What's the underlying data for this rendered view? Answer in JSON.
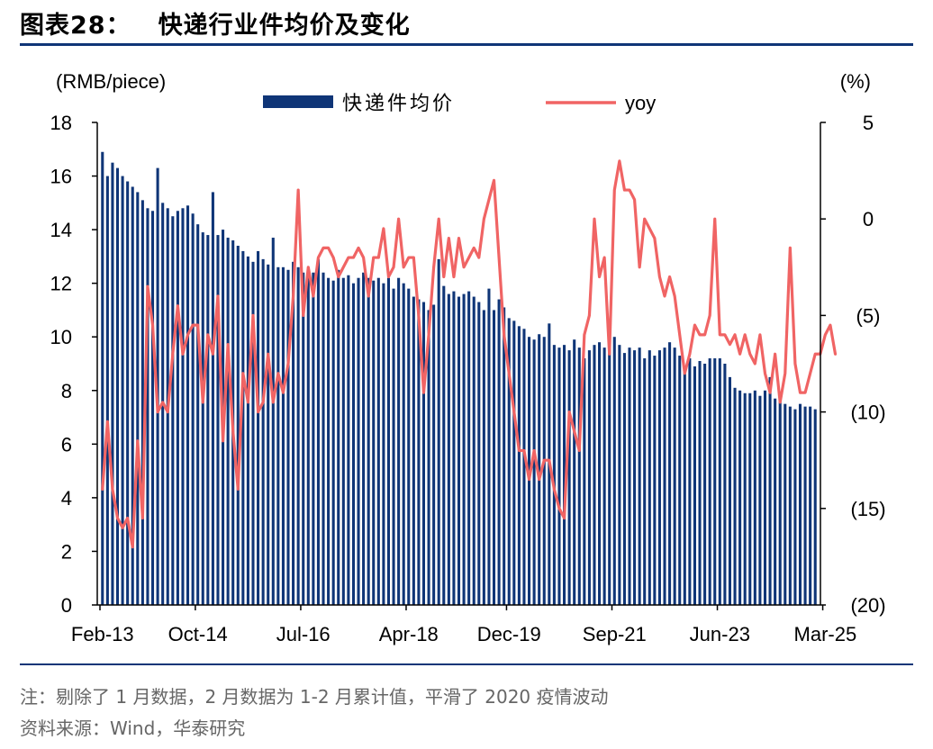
{
  "title": {
    "label": "图表28：",
    "text": "快递行业件均价及变化"
  },
  "notes": {
    "line1": "注：剔除了 1 月数据，2 月数据为 1-2 月累计值，平滑了 2020 疫情波动",
    "source_label": "资料来源：",
    "source_value": "Wind，华泰研究"
  },
  "colors": {
    "bar": "#0f3577",
    "line": "#f06464",
    "rule": "#0f3577",
    "note": "#666666"
  },
  "chart_data": {
    "type": "bar+line",
    "left_axis": {
      "label": "(RMB/piece)",
      "ylim": [
        0,
        18
      ],
      "ticks": [
        0,
        2,
        4,
        6,
        8,
        10,
        12,
        14,
        16,
        18
      ],
      "tick_labels": [
        "0",
        "2",
        "4",
        "6",
        "8",
        "10",
        "12",
        "14",
        "16",
        "18"
      ]
    },
    "right_axis": {
      "label": "(%)",
      "ylim": [
        -20,
        5
      ],
      "ticks": [
        5,
        0,
        -5,
        -10,
        -15,
        -20
      ],
      "tick_labels": [
        "5",
        "0",
        "(5)",
        "(10)",
        "(15)",
        "(20)"
      ]
    },
    "x_tick_labels": [
      "Feb-13",
      "Oct-14",
      "Jul-16",
      "Apr-18",
      "Dec-19",
      "Sep-21",
      "Jun-23",
      "Mar-25"
    ],
    "x_tick_indices": [
      0,
      19,
      40,
      61,
      81,
      102,
      123,
      144
    ],
    "legend": {
      "bar": "快递件均价",
      "line": "yoy",
      "position": "top"
    },
    "series": [
      {
        "name": "快递件均价",
        "type": "bar",
        "axis": "left",
        "values": [
          16.9,
          16.0,
          16.5,
          16.3,
          16.0,
          15.8,
          15.6,
          15.4,
          15.1,
          14.8,
          14.7,
          16.3,
          15.0,
          14.8,
          14.5,
          14.7,
          14.8,
          14.9,
          14.6,
          14.2,
          13.9,
          13.8,
          15.4,
          13.8,
          14.0,
          13.7,
          13.6,
          13.4,
          13.2,
          13.0,
          12.8,
          13.2,
          12.9,
          12.7,
          13.7,
          12.6,
          12.6,
          12.5,
          12.8,
          12.6,
          12.4,
          12.5,
          12.4,
          12.9,
          12.4,
          12.2,
          12.1,
          12.5,
          12.2,
          12.3,
          12.0,
          12.2,
          12.4,
          12.2,
          12.1,
          12.2,
          12.0,
          12.2,
          11.8,
          12.2,
          12.0,
          11.8,
          11.5,
          11.4,
          11.3,
          11.0,
          11.2,
          12.9,
          11.9,
          11.6,
          11.7,
          11.5,
          11.6,
          11.7,
          11.5,
          11.3,
          11.0,
          11.8,
          11.0,
          11.4,
          11.1,
          10.7,
          10.6,
          10.4,
          10.3,
          10.0,
          9.9,
          10.1,
          10.0,
          10.5,
          9.7,
          9.6,
          9.7,
          9.5,
          9.9,
          9.6,
          9.2,
          9.5,
          9.7,
          9.8,
          9.6,
          9.9,
          10.0,
          9.7,
          9.4,
          9.6,
          9.5,
          9.6,
          9.2,
          9.5,
          9.3,
          9.5,
          9.6,
          9.8,
          9.6,
          9.3,
          8.8,
          9.2,
          8.9,
          9.1,
          9.0,
          9.2,
          9.2,
          9.2,
          9.0,
          8.5,
          8.1,
          8.0,
          7.9,
          7.9,
          8.0,
          7.8,
          8.0,
          8.5,
          7.7,
          7.7,
          7.5,
          7.4,
          7.3,
          7.5,
          7.4,
          7.4,
          7.3
        ]
      },
      {
        "name": "yoy",
        "type": "line",
        "axis": "right",
        "values": [
          -14,
          -10.5,
          -14,
          -15.5,
          -16,
          -15.5,
          -17,
          -11.5,
          -15.5,
          -3.5,
          -5.5,
          -10,
          -9.5,
          -10,
          -7,
          -4.5,
          -7,
          -6,
          -5.5,
          -5.5,
          -9.5,
          -6,
          -7,
          -4,
          -11.5,
          -6.5,
          -11,
          -14,
          -8,
          -9.5,
          -5,
          -10,
          -9.5,
          -7,
          -9.5,
          -8,
          -9,
          -7.5,
          -4,
          1.5,
          -5,
          -2.5,
          -4,
          -2,
          -1.5,
          -1.5,
          -2,
          -3,
          -2.5,
          -2,
          -2,
          -1.5,
          -2,
          -4,
          -2,
          -2,
          -0.5,
          -3,
          -2.5,
          0,
          -2.5,
          -2,
          -2,
          -5,
          -9,
          -6,
          -2.5,
          0,
          -3,
          -1,
          -3,
          -1,
          -2.5,
          -2,
          -1.5,
          -2,
          0,
          1,
          2,
          -2,
          -6,
          -8,
          -10,
          -12,
          -12,
          -13.5,
          -12,
          -13.5,
          -12.5,
          -12.5,
          -14,
          -15,
          -15.5,
          -10,
          -11,
          -12,
          -6,
          -5,
          0,
          -3,
          -2,
          -7,
          1.5,
          3,
          1.5,
          1.5,
          1,
          -2.5,
          0,
          -0.5,
          -1,
          -3,
          -4,
          -3,
          -4,
          -6,
          -8,
          -7,
          -5.5,
          -6,
          -6,
          -5,
          0,
          -6,
          -6,
          -6.5,
          -6,
          -7,
          -6,
          -7,
          -7.5,
          -6,
          -8,
          -9,
          -7,
          -9.5,
          -8,
          -1.5,
          -7.5,
          -9,
          -9,
          -8,
          -7,
          -7,
          -6,
          -5.5,
          -7
        ]
      }
    ]
  }
}
